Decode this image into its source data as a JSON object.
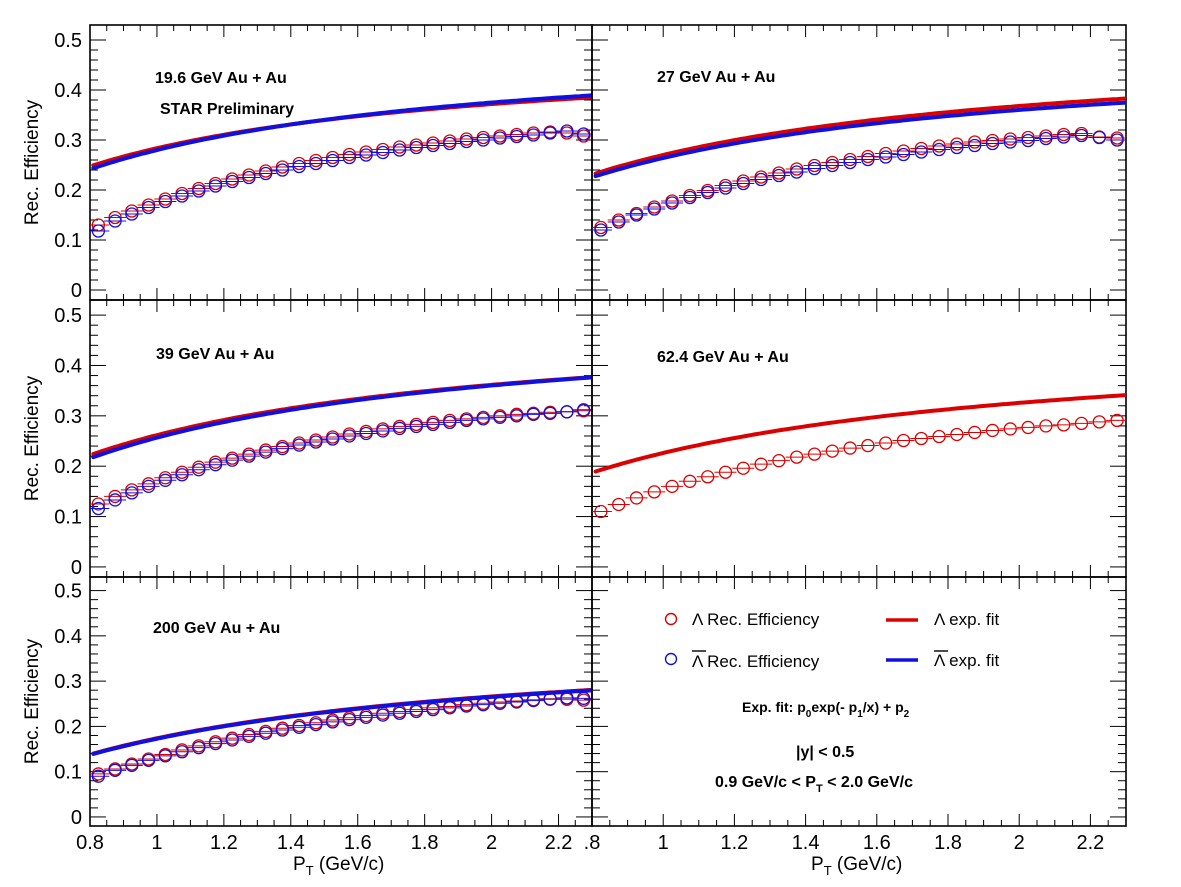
{
  "chart_data": {
    "type": "scatter",
    "ylabel": "Rec. Efficiency",
    "xlabel": "P",
    "xlabel_sub": "T",
    "xlabel_unit": " (GeV/c)",
    "xlim": [
      0.8,
      2.3
    ],
    "ylim": [
      -0.02,
      0.53
    ],
    "y_ticks": [
      "0",
      "0.1",
      "0.2",
      "0.3",
      "0.4",
      "0.5"
    ],
    "x_ticks_left": [
      "0.8",
      "1",
      "1.2",
      "1.4",
      "1.6",
      "1.8",
      "2",
      "2.2"
    ],
    "x_ticks_right": [
      ".8",
      "1",
      "1.2",
      "1.4",
      "1.6",
      "1.8",
      "2",
      "2.2"
    ],
    "colors": {
      "lambda": "#dd0000",
      "antilambda": "#1010e0"
    },
    "x": [
      0.825,
      0.875,
      0.925,
      0.975,
      1.025,
      1.075,
      1.125,
      1.175,
      1.225,
      1.275,
      1.325,
      1.375,
      1.425,
      1.475,
      1.525,
      1.575,
      1.625,
      1.675,
      1.725,
      1.775,
      1.825,
      1.875,
      1.925,
      1.975,
      2.025,
      2.075,
      2.125,
      2.175,
      2.225,
      2.275
    ],
    "panels": [
      {
        "label": "19.6 GeV Au + Au",
        "sublabel": "STAR Preliminary",
        "series": [
          {
            "name": "Λ",
            "values": [
              0.13,
              0.145,
              0.158,
              0.17,
              0.182,
              0.193,
              0.203,
              0.213,
              0.222,
              0.23,
              0.238,
              0.246,
              0.253,
              0.259,
              0.265,
              0.271,
              0.276,
              0.281,
              0.286,
              0.29,
              0.294,
              0.298,
              0.302,
              0.305,
              0.308,
              0.311,
              0.314,
              0.316,
              0.314,
              0.308
            ]
          },
          {
            "name": "Λ̄",
            "values": [
              0.118,
              0.138,
              0.152,
              0.165,
              0.177,
              0.188,
              0.198,
              0.208,
              0.217,
              0.225,
              0.233,
              0.24,
              0.247,
              0.253,
              0.259,
              0.265,
              0.27,
              0.275,
              0.28,
              0.285,
              0.289,
              0.293,
              0.297,
              0.3,
              0.304,
              0.307,
              0.31,
              0.314,
              0.318,
              0.312
            ]
          }
        ],
        "fits": [
          {
            "name": "Λ exp. fit",
            "p0": 0.5,
            "p1": 0.52,
            "p2": -0.0137
          },
          {
            "name": "Λ̄ exp. fit",
            "p0": 0.52,
            "p1": 0.55,
            "p2": -0.0201
          }
        ]
      },
      {
        "label": "27 GeV Au + Au",
        "series": [
          {
            "name": "Λ",
            "values": [
              0.125,
              0.14,
              0.153,
              0.166,
              0.178,
              0.189,
              0.199,
              0.209,
              0.218,
              0.226,
              0.234,
              0.242,
              0.249,
              0.255,
              0.261,
              0.267,
              0.273,
              0.278,
              0.283,
              0.288,
              0.292,
              0.296,
              0.299,
              0.302,
              0.305,
              0.308,
              0.311,
              0.313,
              0.306,
              0.304
            ]
          },
          {
            "name": "Λ̄",
            "values": [
              0.12,
              0.136,
              0.15,
              0.162,
              0.174,
              0.185,
              0.195,
              0.204,
              0.213,
              0.221,
              0.229,
              0.236,
              0.243,
              0.249,
              0.255,
              0.261,
              0.266,
              0.271,
              0.276,
              0.281,
              0.285,
              0.289,
              0.293,
              0.296,
              0.299,
              0.303,
              0.306,
              0.309,
              0.305,
              0.3
            ]
          }
        ],
        "fits": [
          {
            "name": "Λ exp. fit",
            "p0": 0.52,
            "p1": 0.58,
            "p2": -0.0211
          },
          {
            "name": "Λ̄ exp. fit",
            "p0": 0.51,
            "p1": 0.58,
            "p2": -0.0215
          }
        ]
      },
      {
        "label": "39 GeV Au + Au",
        "series": [
          {
            "name": "Λ",
            "values": [
              0.125,
              0.14,
              0.153,
              0.165,
              0.177,
              0.188,
              0.198,
              0.208,
              0.216,
              0.224,
              0.232,
              0.239,
              0.246,
              0.252,
              0.258,
              0.264,
              0.269,
              0.274,
              0.279,
              0.283,
              0.287,
              0.291,
              0.294,
              0.297,
              0.3,
              0.303,
              0.305,
              0.307,
              0.308,
              0.31
            ]
          },
          {
            "name": "Λ̄",
            "values": [
              0.116,
              0.133,
              0.147,
              0.16,
              0.172,
              0.183,
              0.193,
              0.203,
              0.212,
              0.22,
              0.228,
              0.235,
              0.242,
              0.248,
              0.254,
              0.26,
              0.265,
              0.27,
              0.275,
              0.279,
              0.283,
              0.287,
              0.291,
              0.294,
              0.297,
              0.3,
              0.303,
              0.305,
              0.308,
              0.312
            ]
          }
        ],
        "fits": [
          {
            "name": "Λ exp. fit",
            "p0": 0.52,
            "p1": 0.6,
            "p2": -0.0237
          },
          {
            "name": "Λ̄ exp. fit",
            "p0": 0.53,
            "p1": 0.62,
            "p2": -0.0285
          }
        ]
      },
      {
        "label": "62.4 GeV Au + Au",
        "series": [
          {
            "name": "Λ",
            "values": [
              0.11,
              0.124,
              0.137,
              0.149,
              0.16,
              0.17,
              0.179,
              0.188,
              0.196,
              0.204,
              0.211,
              0.218,
              0.224,
              0.23,
              0.236,
              0.241,
              0.246,
              0.251,
              0.255,
              0.259,
              0.263,
              0.267,
              0.271,
              0.274,
              0.277,
              0.28,
              0.282,
              0.285,
              0.288,
              0.291
            ]
          }
        ],
        "fits": [
          {
            "name": "Λ exp. fit",
            "p0": 0.5,
            "p1": 0.64,
            "p2": -0.0374
          }
        ]
      },
      {
        "label": "200 GeV Au + Au",
        "series": [
          {
            "name": "Λ",
            "values": [
              0.095,
              0.106,
              0.117,
              0.128,
              0.138,
              0.148,
              0.157,
              0.166,
              0.174,
              0.182,
              0.189,
              0.196,
              0.202,
              0.208,
              0.214,
              0.219,
              0.224,
              0.229,
              0.233,
              0.237,
              0.241,
              0.244,
              0.248,
              0.251,
              0.254,
              0.256,
              0.259,
              0.261,
              0.26,
              0.258
            ]
          },
          {
            "name": "Λ̄",
            "values": [
              0.09,
              0.103,
              0.114,
              0.125,
              0.135,
              0.144,
              0.153,
              0.162,
              0.17,
              0.178,
              0.185,
              0.192,
              0.198,
              0.204,
              0.21,
              0.215,
              0.22,
              0.225,
              0.229,
              0.233,
              0.237,
              0.241,
              0.245,
              0.248,
              0.251,
              0.254,
              0.257,
              0.26,
              0.263,
              0.262
            ]
          }
        ],
        "fits": [
          {
            "name": "Λ exp. fit",
            "p0": 0.45,
            "p1": 0.68,
            "p2": -0.0542
          },
          {
            "name": "Λ̄ exp. fit",
            "p0": 0.45,
            "p1": 0.68,
            "p2": -0.0552
          }
        ]
      }
    ],
    "legend": {
      "lambda_points": "Λ Rec. Efficiency",
      "antilambda_points": "Λ Rec. Efficiency",
      "lambda_fit": "Λ exp. fit",
      "antilambda_fit": "Λ exp. fit",
      "fit_formula": "Exp. fit:  p0exp(- p1/x) + p2",
      "rapidity_cut": "|y| < 0.5",
      "pt_cut": "0.9 GeV/c < PT < 2.0 GeV/c"
    }
  }
}
